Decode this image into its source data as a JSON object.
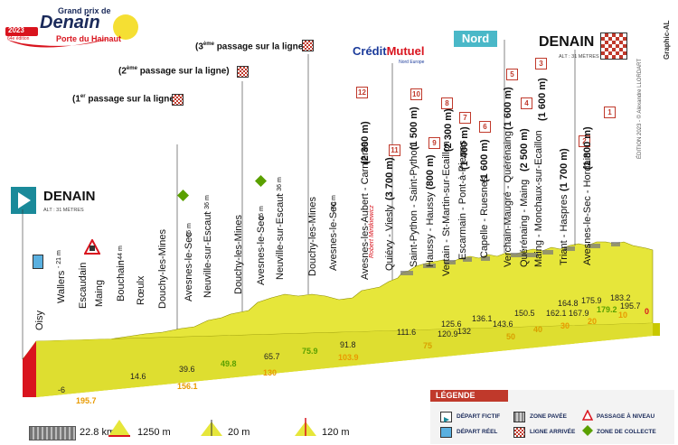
{
  "logo": {
    "year": "2023",
    "edition": "64e édition",
    "title_small": "Grand prix de",
    "title_big": "Denain",
    "subtitle": "Porte du Hainaut"
  },
  "start": {
    "name": "DENAIN",
    "alt": "ALT : 31 MÈTRES"
  },
  "finish": {
    "name": "DENAIN",
    "alt": "ALT : 31 MÈTRES"
  },
  "sponsors": {
    "bank_a": "Crédit",
    "bank_b": "Mutuel",
    "bank_sub": "Nord Europe",
    "region": "Nord",
    "signature": "Robert Mintkiewicz"
  },
  "passages": [
    {
      "ord": "1",
      "sup": "er",
      "text": " passage sur la ligne)"
    },
    {
      "ord": "2",
      "sup": "ème",
      "text": " passage sur la ligne)"
    },
    {
      "ord": "3",
      "sup": "ème",
      "text": " passage sur la ligne)"
    }
  ],
  "places_left": [
    "Oisy",
    "Wallers",
    "- 21 m",
    "Escaudain",
    "Maing",
    "Bouchain",
    "- 44 m",
    "Rœulx",
    "Douchy-les-Mines",
    "Avesnes-le-Sec",
    "- 66 m",
    "Neuville-sur-Escaut",
    "- 36 m",
    "Douchy-les-Mines",
    "Avesnes-le-Sec",
    "- 66 m",
    "Neuville-sur-Escaut",
    "- 36 m",
    "Douchy-les-Mines",
    "Avesnes-le-Sec",
    "- 66 m"
  ],
  "places_right": [
    {
      "name": "Avesnes-les-Aubert - Carnières",
      "len": "(2 300 m)",
      "num": "12"
    },
    {
      "name": "Quiévy - Viesly",
      "len": "(3 700 m)",
      "num": "11"
    },
    {
      "name": "Saint-Python - Saint-Python",
      "len": "(1 500 m)",
      "num": "10"
    },
    {
      "name": "Haussy - Haussy",
      "len": "(800 m)",
      "num": "9"
    },
    {
      "name": "Vertain - St-Martin-sur-Ecaillon",
      "len": "(2 300 m)",
      "num": "8"
    },
    {
      "name": "Escarmain - Pont-à-Pierres",
      "len": "(1 400 m)",
      "num": "7"
    },
    {
      "name": "Capelle - Ruesnes",
      "len": "(1 600 m)",
      "num": "6"
    },
    {
      "name": "Verchain-Maugré - Quérénaing",
      "len": "(1 600 m)",
      "num": "5"
    },
    {
      "name": "Quérénaing - Maing",
      "len": "(2 500 m)",
      "num": "4"
    },
    {
      "name": "Maing - Monchaux-sur-Ecaillon",
      "len": "(1 600 m)",
      "num": "3"
    },
    {
      "name": "Triant - Haspres",
      "len": "(1 700 m)",
      "num": "2"
    },
    {
      "name": "Avesnes-le-Sec - Hordain",
      "len": "(1 800 m)",
      "num": "1"
    }
  ],
  "km_upper": [
    "111.6",
    "120.9",
    "125.6",
    "132",
    "136.1",
    "143.6",
    "150.5",
    "162.1",
    "164.8",
    "167.9",
    "175.9",
    "179.2",
    "183.2",
    "195.7"
  ],
  "km_lower": [
    "-6",
    "14.6",
    "39.6",
    "49.8",
    "65.7",
    "75.9",
    "91.8",
    "103.9"
  ],
  "km_remaining": [
    "195.7",
    "156.1",
    "130",
    "75",
    "50",
    "40",
    "30",
    "20",
    "10",
    "0"
  ],
  "side": {
    "copyright": "ÉDITION 2023 - © Alexandre LLORDART",
    "credit": "Graphic-AL"
  },
  "legend": {
    "title": "LÉGENDE",
    "items": [
      "DÉPART FICTIF",
      "ZONE PAVÉE",
      "PASSAGE À NIVEAU",
      "DÉPART RÉEL",
      "LIGNE ARRIVÉE",
      "ZONE DE COLLECTE"
    ]
  },
  "scale": {
    "cobbles": "22.8 km",
    "dist": "1250 m",
    "alt1": "20 m",
    "alt2": "120 m"
  },
  "colors": {
    "profile": "#e6e63a",
    "profile_dark": "#b8b800",
    "red": "#d9141e",
    "navy": "#1a2a5a",
    "teal": "#1a8a9a"
  }
}
